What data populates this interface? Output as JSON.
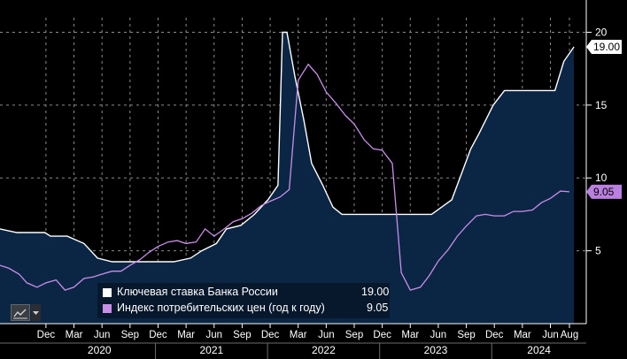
{
  "chart_data": {
    "type": "area",
    "ylim": [
      0,
      21
    ],
    "yticks": [
      "5",
      "10",
      "15",
      "20"
    ],
    "x_ticks": [
      "Dec",
      "Mar",
      "Jun",
      "Sep",
      "Dec",
      "Mar",
      "Jun",
      "Sep",
      "Dec",
      "Mar",
      "Jun",
      "Sep",
      "Dec",
      "Mar",
      "Jun",
      "Sep",
      "Dec",
      "Mar",
      "Jun",
      "Aug"
    ],
    "years": [
      "2020",
      "2021",
      "2022",
      "2023",
      "2024"
    ],
    "series": [
      {
        "name": "Ключевая ставка Банка России",
        "color": "#ffffff",
        "fill": "#0b2545",
        "last_value": "19.00",
        "x": [
          2019.55,
          2019.7,
          2019.8,
          2019.95,
          2020.0,
          2020.15,
          2020.3,
          2020.42,
          2020.55,
          2020.95,
          2021.1,
          2021.25,
          2021.35,
          2021.48,
          2021.57,
          2021.7,
          2021.82,
          2021.94,
          2022.03,
          2022.07,
          2022.11,
          2022.18,
          2022.26,
          2022.33,
          2022.43,
          2022.52,
          2022.6,
          2022.75,
          2022.95,
          2023.1,
          2023.4,
          2023.58,
          2023.75,
          2023.82,
          2023.95,
          2024.05,
          2024.25,
          2024.5,
          2024.58,
          2024.67
        ],
        "values": [
          6.5,
          6.25,
          6.25,
          6.25,
          6.0,
          6.0,
          5.5,
          4.5,
          4.25,
          4.25,
          4.25,
          4.5,
          5.0,
          5.5,
          6.5,
          6.75,
          7.5,
          8.5,
          9.5,
          20.0,
          20.0,
          17.0,
          14.0,
          11.0,
          9.5,
          8.0,
          7.5,
          7.5,
          7.5,
          7.5,
          7.5,
          8.5,
          12.0,
          13.0,
          15.0,
          16.0,
          16.0,
          16.0,
          18.0,
          19.0
        ]
      },
      {
        "name": "Индекс потребительских цен (год к году)",
        "color": "#c98ee8",
        "last_value": "9.05",
        "x": [
          2019.55,
          2019.63,
          2019.72,
          2019.79,
          2019.88,
          2019.96,
          2020.05,
          2020.13,
          2020.21,
          2020.3,
          2020.38,
          2020.46,
          2020.55,
          2020.63,
          2020.71,
          2020.8,
          2020.88,
          2020.96,
          2021.05,
          2021.13,
          2021.21,
          2021.3,
          2021.38,
          2021.46,
          2021.55,
          2021.63,
          2021.71,
          2021.8,
          2021.88,
          2021.96,
          2022.05,
          2022.13,
          2022.21,
          2022.3,
          2022.38,
          2022.46,
          2022.55,
          2022.63,
          2022.71,
          2022.8,
          2022.88,
          2022.96,
          2023.05,
          2023.13,
          2023.21,
          2023.3,
          2023.38,
          2023.46,
          2023.55,
          2023.63,
          2023.71,
          2023.8,
          2023.88,
          2023.96,
          2024.05,
          2024.13,
          2024.21,
          2024.3,
          2024.38,
          2024.46,
          2024.55,
          2024.63
        ],
        "values": [
          4.0,
          3.8,
          3.4,
          2.8,
          2.5,
          2.8,
          3.0,
          2.3,
          2.5,
          3.1,
          3.2,
          3.4,
          3.6,
          3.6,
          4.0,
          4.4,
          4.9,
          5.3,
          5.6,
          5.7,
          5.5,
          5.6,
          6.5,
          6.0,
          6.5,
          7.0,
          7.2,
          7.6,
          8.1,
          8.4,
          8.7,
          9.2,
          16.7,
          17.8,
          17.1,
          15.9,
          15.1,
          14.3,
          13.7,
          12.6,
          12.0,
          11.9,
          11.0,
          3.5,
          2.3,
          2.5,
          3.3,
          4.3,
          5.1,
          6.0,
          6.7,
          7.4,
          7.5,
          7.4,
          7.4,
          7.7,
          7.7,
          7.8,
          8.3,
          8.6,
          9.1,
          9.05
        ]
      }
    ]
  },
  "legend": {
    "items": [
      {
        "label": "Ключевая ставка Банка России",
        "value": "19.00",
        "color": "#ffffff"
      },
      {
        "label": "Индекс потребительских цен (год к году)",
        "value": "9.05",
        "color": "#c98ee8"
      }
    ]
  },
  "badges": {
    "key_rate": "19.00",
    "cpi": "9.05",
    "key_rate_color": "#ffffff",
    "cpi_color": "#b980e0"
  },
  "toolbar": {
    "icon": "line-chart-icon",
    "dropdown_icon": "chevron-down-icon"
  }
}
